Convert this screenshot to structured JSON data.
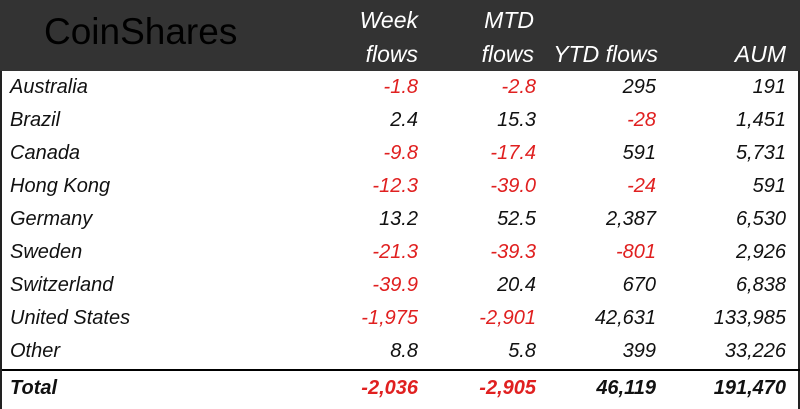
{
  "logo_text": "CoinShares",
  "header": {
    "week_l1": "Week",
    "week_l2": "flows",
    "mtd_l1": "MTD",
    "mtd_l2": "flows",
    "ytd": "YTD flows",
    "aum": "AUM"
  },
  "rows": [
    {
      "country": "Australia",
      "week": "-1.8",
      "mtd": "-2.8",
      "ytd": "295",
      "aum": "191"
    },
    {
      "country": "Brazil",
      "week": "2.4",
      "mtd": "15.3",
      "ytd": "-28",
      "aum": "1,451"
    },
    {
      "country": "Canada",
      "week": "-9.8",
      "mtd": "-17.4",
      "ytd": "591",
      "aum": "5,731"
    },
    {
      "country": "Hong Kong",
      "week": "-12.3",
      "mtd": "-39.0",
      "ytd": "-24",
      "aum": "591"
    },
    {
      "country": "Germany",
      "week": "13.2",
      "mtd": "52.5",
      "ytd": "2,387",
      "aum": "6,530"
    },
    {
      "country": "Sweden",
      "week": "-21.3",
      "mtd": "-39.3",
      "ytd": "-801",
      "aum": "2,926"
    },
    {
      "country": "Switzerland",
      "week": "-39.9",
      "mtd": "20.4",
      "ytd": "670",
      "aum": "6,838"
    },
    {
      "country": "United States",
      "week": "-1,975",
      "mtd": "-2,901",
      "ytd": "42,631",
      "aum": "133,985"
    },
    {
      "country": "Other",
      "week": "8.8",
      "mtd": "5.8",
      "ytd": "399",
      "aum": "33,226"
    }
  ],
  "total": {
    "country": "Total",
    "week": "-2,036",
    "mtd": "-2,905",
    "ytd": "46,119",
    "aum": "191,470"
  },
  "colors": {
    "negative": "#e02020",
    "header_bg": "#333333"
  }
}
